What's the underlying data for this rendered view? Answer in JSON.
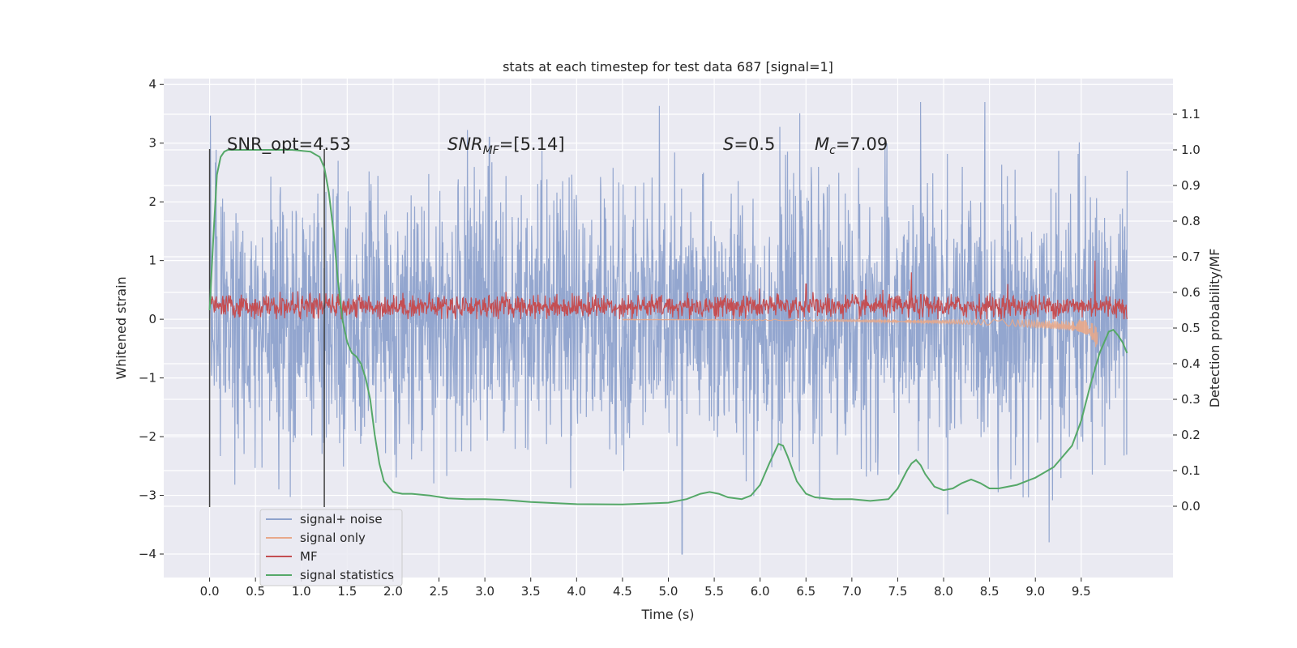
{
  "chart_data": {
    "type": "line",
    "title": "stats at each timestep for test data 687 [signal=1]",
    "xlabel": "Time (s)",
    "ylabel": "Whitened strain",
    "y2label": "Detection probability/MF",
    "xlim": [
      -0.5,
      10.5
    ],
    "ylim": [
      -4.4,
      4.1
    ],
    "y2lim": [
      -0.2,
      1.2
    ],
    "xticks": [
      "0.0",
      "0.5",
      "1.0",
      "1.5",
      "2.0",
      "2.5",
      "3.0",
      "3.5",
      "4.0",
      "4.5",
      "5.0",
      "5.5",
      "6.0",
      "6.5",
      "7.0",
      "7.5",
      "8.0",
      "8.5",
      "9.0",
      "9.5"
    ],
    "yticks": [
      "4",
      "3",
      "2",
      "1",
      "0",
      "−1",
      "−2",
      "−3",
      "−4"
    ],
    "y2ticks": [
      "0.0",
      "0.1",
      "0.2",
      "0.3",
      "0.4",
      "0.5",
      "0.6",
      "0.7",
      "0.8",
      "0.9",
      "1.0",
      "1.1"
    ],
    "grid": true,
    "legend_position": "lower-left",
    "annotations": {
      "snr_opt": "SNR_opt=4.53",
      "snr_mf_sym": "SNR",
      "snr_mf_sub": "MF",
      "snr_mf_val": "=[5.14]",
      "s_sym": "S",
      "s_val": "=0.5",
      "mc_sym": "M",
      "mc_sub": "c",
      "mc_val": "=7.09"
    },
    "vertical_lines_x": [
      0.0,
      1.25
    ],
    "series": [
      {
        "name": "signal+ noise",
        "color": "#8ea2cc",
        "description_values": "whitened noise, approx Gaussian, std 1.1, range -4.1 to 3.7",
        "peaks": [
          [
            1.4,
            2.7
          ],
          [
            3.05,
            3.1
          ],
          [
            7.75,
            3.7
          ],
          [
            5.15,
            -4.0
          ],
          [
            9.15,
            -3.8
          ]
        ]
      },
      {
        "name": "signal only",
        "color": "#e8a88a",
        "envelope_x": [
          5.0,
          6.0,
          7.0,
          8.0,
          8.5,
          9.0,
          9.3,
          9.5,
          9.6,
          9.65,
          9.68
        ],
        "envelope_amp": [
          0.01,
          0.02,
          0.04,
          0.07,
          0.1,
          0.14,
          0.18,
          0.22,
          0.3,
          0.45,
          0.55
        ]
      },
      {
        "name": "MF",
        "color": "#c44e52",
        "description_values": "fluctuates around 0.2 on primary axis, 0.0 to 0.6",
        "peaks": [
          [
            9.65,
            1.0
          ],
          [
            7.65,
            0.8
          ],
          [
            8.7,
            0.6
          ],
          [
            6.5,
            0.6
          ]
        ]
      },
      {
        "name": "signal statistics",
        "color": "#55a868",
        "x": [
          0.0,
          0.04,
          0.08,
          0.12,
          0.16,
          0.2,
          0.3,
          0.5,
          0.7,
          0.9,
          1.1,
          1.2,
          1.25,
          1.3,
          1.35,
          1.4,
          1.45,
          1.5,
          1.55,
          1.6,
          1.65,
          1.7,
          1.75,
          1.8,
          1.85,
          1.9,
          2.0,
          2.1,
          2.2,
          2.4,
          2.6,
          2.8,
          3.0,
          3.2,
          3.5,
          4.0,
          4.5,
          5.0,
          5.2,
          5.35,
          5.45,
          5.55,
          5.65,
          5.8,
          5.9,
          6.0,
          6.1,
          6.2,
          6.25,
          6.3,
          6.4,
          6.5,
          6.6,
          6.8,
          7.0,
          7.2,
          7.4,
          7.5,
          7.6,
          7.65,
          7.7,
          7.75,
          7.8,
          7.9,
          8.0,
          8.1,
          8.2,
          8.3,
          8.4,
          8.5,
          8.6,
          8.8,
          9.0,
          9.2,
          9.4,
          9.5,
          9.6,
          9.7,
          9.8,
          9.85,
          9.9,
          9.95,
          10.0
        ],
        "y": [
          0.55,
          0.75,
          0.93,
          0.98,
          0.995,
          1.0,
          1.0,
          1.0,
          1.0,
          1.0,
          0.995,
          0.98,
          0.95,
          0.88,
          0.77,
          0.63,
          0.52,
          0.46,
          0.43,
          0.42,
          0.4,
          0.36,
          0.3,
          0.2,
          0.12,
          0.07,
          0.04,
          0.035,
          0.035,
          0.03,
          0.022,
          0.02,
          0.02,
          0.018,
          0.012,
          0.006,
          0.005,
          0.01,
          0.02,
          0.035,
          0.04,
          0.035,
          0.025,
          0.02,
          0.03,
          0.06,
          0.12,
          0.175,
          0.17,
          0.14,
          0.07,
          0.035,
          0.025,
          0.02,
          0.02,
          0.015,
          0.02,
          0.05,
          0.1,
          0.12,
          0.13,
          0.115,
          0.09,
          0.055,
          0.045,
          0.05,
          0.065,
          0.075,
          0.065,
          0.05,
          0.05,
          0.06,
          0.08,
          0.11,
          0.17,
          0.24,
          0.34,
          0.43,
          0.49,
          0.495,
          0.48,
          0.46,
          0.43
        ]
      }
    ]
  }
}
